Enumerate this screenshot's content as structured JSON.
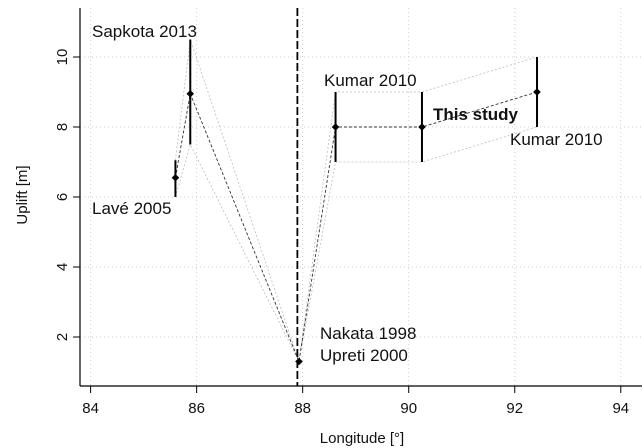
{
  "chart_data": {
    "type": "scatter",
    "title": "",
    "xlabel": "Longitude [°]",
    "ylabel": "Uplift [m]",
    "xlim": [
      83.8,
      94.4
    ],
    "ylim": [
      0.6,
      11.4
    ],
    "x_ticks": [
      84,
      86,
      88,
      90,
      92,
      94
    ],
    "y_ticks": [
      2,
      4,
      6,
      8,
      10
    ],
    "grid": true,
    "vertical_marker_x": 87.9,
    "points": [
      {
        "x": 85.6,
        "y": 6.55,
        "err_low": 6.0,
        "err_high": 7.05
      },
      {
        "x": 85.88,
        "y": 8.95,
        "err_low": 7.5,
        "err_high": 10.5
      },
      {
        "x": 87.93,
        "y": 1.3,
        "err_low": 1.3,
        "err_high": 1.3
      },
      {
        "x": 88.62,
        "y": 8.0,
        "err_low": 7.0,
        "err_high": 9.0
      },
      {
        "x": 90.25,
        "y": 8.0,
        "err_low": 7.0,
        "err_high": 9.0
      },
      {
        "x": 92.42,
        "y": 9.0,
        "err_low": 8.0,
        "err_high": 10.0
      }
    ],
    "annotations": [
      {
        "text": "Sapkota 2013",
        "bold": false
      },
      {
        "text": "Lavé 2005",
        "bold": false
      },
      {
        "text": "Nakata 1998",
        "bold": false
      },
      {
        "text": "Upreti 2000",
        "bold": false
      },
      {
        "text": "Kumar 2010",
        "bold": false
      },
      {
        "text": "This study",
        "bold": true
      },
      {
        "text": "Kumar 2010",
        "bold": false
      }
    ]
  }
}
